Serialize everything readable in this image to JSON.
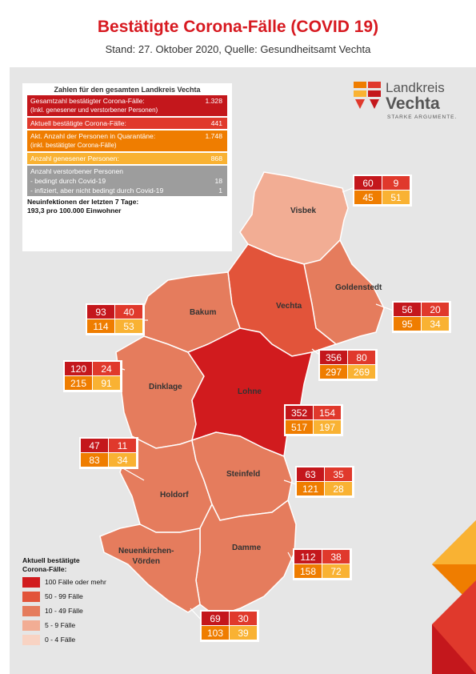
{
  "title": "Bestätigte Corona-Fälle (COVID 19)",
  "subtitle": "Stand: 27. Oktober 2020, Quelle: Gesundheitsamt Vechta",
  "info": {
    "heading": "Zahlen für den gesamten Landkreis Vechta",
    "total_label": "Gesamtzahl bestätigter Corona-Fälle:",
    "total_sub": "(Inkl. genesener und verstorbener Personen)",
    "total_value": "1.328",
    "active_label": "Aktuell bestätigte Corona-Fälle:",
    "active_value": "441",
    "quarantine_label": "Akt. Anzahl der Personen in Quarantäne:",
    "quarantine_sub": "(inkl. bestätigter Corona-Fälle)",
    "quarantine_value": "1.748",
    "recovered_label": "Anzahl genesener Personen:",
    "recovered_value": "868",
    "deaths_label": "Anzahl verstorbener Personen",
    "deaths_covid_label": "- bedingt durch Covid-19",
    "deaths_covid_value": "18",
    "deaths_infected_label": "- infiziert, aber nicht bedingt durch Covid-19",
    "deaths_infected_value": "1",
    "new7_label": "Neuinfektionen der letzten 7 Tage:",
    "new7_value": "193,3 pro 100.000 Einwohner"
  },
  "logo": {
    "line1": "Landkreis",
    "line2": "Vechta",
    "tagline": "STARKE ARGUMENTE."
  },
  "municipalities": [
    {
      "name": "Visbek",
      "total": "60",
      "active": "9",
      "quarantine": "45",
      "recovered": "51",
      "category": 3,
      "box_color": "#e07b5f"
    },
    {
      "name": "Goldenstedt",
      "total": "56",
      "active": "20",
      "quarantine": "95",
      "recovered": "34",
      "category": 2,
      "box_color": "#e07b5f"
    },
    {
      "name": "Vechta",
      "total": "356",
      "active": "80",
      "quarantine": "297",
      "recovered": "269",
      "category": 1,
      "box_color": "#e2543a"
    },
    {
      "name": "Bakum",
      "total": "93",
      "active": "40",
      "quarantine": "114",
      "recovered": "53",
      "category": 2,
      "box_color": "#e07b5f"
    },
    {
      "name": "Dinklage",
      "total": "120",
      "active": "24",
      "quarantine": "215",
      "recovered": "91",
      "category": 2,
      "box_color": "#e07b5f"
    },
    {
      "name": "Lohne",
      "total": "352",
      "active": "154",
      "quarantine": "517",
      "recovered": "197",
      "category": 0,
      "box_color": "#d11b1e"
    },
    {
      "name": "Holdorf",
      "total": "47",
      "active": "11",
      "quarantine": "83",
      "recovered": "34",
      "category": 2,
      "box_color": "#e07b5f"
    },
    {
      "name": "Steinfeld",
      "total": "63",
      "active": "35",
      "quarantine": "121",
      "recovered": "28",
      "category": 2,
      "box_color": "#e07b5f"
    },
    {
      "name": "Damme",
      "total": "112",
      "active": "38",
      "quarantine": "158",
      "recovered": "72",
      "category": 2,
      "box_color": "#e07b5f"
    },
    {
      "name": "Neuenkirchen-\nVörden",
      "total": "69",
      "active": "30",
      "quarantine": "103",
      "recovered": "39",
      "category": 2,
      "box_color": "#e07b5f"
    }
  ],
  "legend": {
    "title": "Aktuell bestätigte\nCorona-Fälle:",
    "items": [
      {
        "label": "100 Fälle oder mehr",
        "color": "#d11b1e"
      },
      {
        "label": "50 - 99 Fälle",
        "color": "#e2543a"
      },
      {
        "label": "10 - 49 Fälle",
        "color": "#e57c5d"
      },
      {
        "label": "5 - 9 Fälle",
        "color": "#f2ad94"
      },
      {
        "label": "0 - 4 Fälle",
        "color": "#f8d3c3"
      }
    ]
  },
  "colors": {
    "box_total": "#c4171c",
    "box_active": "#e0392c",
    "box_quarantine": "#ef7d00",
    "box_recovered": "#f9b233",
    "panel_bg": "#e6e6e6",
    "accent": "#d71920"
  }
}
